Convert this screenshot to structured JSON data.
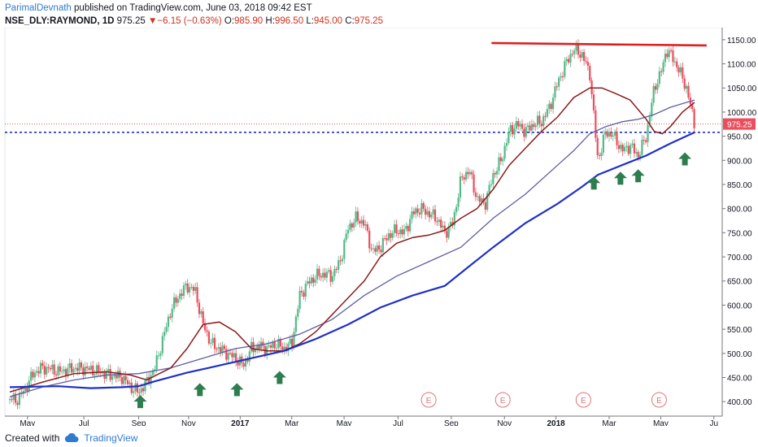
{
  "header": {
    "author": "ParimalDevnath",
    "published": "published on TradingView.com, June 03, 2018 09:42 EST"
  },
  "ticker": {
    "symbol": "NSE_DLY:RAYMOND, 1D",
    "last": "975.25",
    "change": "−6.15 (−0.63%)",
    "o_label": "O:",
    "o": "985.90",
    "h_label": "H:",
    "h": "996.50",
    "l_label": "L:",
    "l": "945.00",
    "c_label": "C:",
    "c": "975.25"
  },
  "footer": {
    "created_with": "Created with",
    "brand": "TradingView"
  },
  "colors": {
    "up": "#53b987",
    "down": "#eb4d5c",
    "ma_short": "#8c1a1a",
    "ma_mid": "#5b5ea6",
    "ma_long": "#1f30c8",
    "resistance": "#e01e1e",
    "support": "#1f30c8",
    "arrow": "#2e7d4f"
  },
  "chart_data": {
    "type": "candlestick",
    "y_axis_ticks": [
      "400.00",
      "450.00",
      "500.00",
      "550.00",
      "600.00",
      "650.00",
      "700.00",
      "750.00",
      "800.00",
      "850.00",
      "900.00",
      "950.00",
      "1000.00",
      "1050.00",
      "1100.00",
      "1150.00"
    ],
    "ylim": [
      370,
      1175
    ],
    "x_tick_labels": [
      "May",
      "Jul",
      "Sep",
      "Nov",
      "2017",
      "Mar",
      "May",
      "Jul",
      "Sep",
      "Nov",
      "2018",
      "Mar",
      "May",
      "Ju"
    ],
    "last_price_label": "975.25",
    "resistance_level": 1138,
    "support_level": 958,
    "earnings_markers": [
      "E",
      "E",
      "E",
      "E"
    ],
    "close_series": [
      [
        0,
        405
      ],
      [
        10,
        404
      ],
      [
        20,
        430
      ],
      [
        30,
        460
      ],
      [
        40,
        470
      ],
      [
        50,
        468
      ],
      [
        60,
        462
      ],
      [
        70,
        465
      ],
      [
        80,
        470
      ],
      [
        95,
        468
      ],
      [
        110,
        462
      ],
      [
        125,
        455
      ],
      [
        140,
        450
      ],
      [
        150,
        430
      ],
      [
        160,
        420
      ],
      [
        170,
        440
      ],
      [
        180,
        470
      ],
      [
        190,
        530
      ],
      [
        200,
        590
      ],
      [
        210,
        620
      ],
      [
        220,
        640
      ],
      [
        230,
        630
      ],
      [
        240,
        560
      ],
      [
        250,
        520
      ],
      [
        260,
        510
      ],
      [
        270,
        500
      ],
      [
        280,
        490
      ],
      [
        290,
        475
      ],
      [
        300,
        510
      ],
      [
        310,
        515
      ],
      [
        320,
        510
      ],
      [
        330,
        520
      ],
      [
        340,
        510
      ],
      [
        350,
        520
      ],
      [
        360,
        620
      ],
      [
        370,
        645
      ],
      [
        380,
        660
      ],
      [
        390,
        665
      ],
      [
        400,
        660
      ],
      [
        410,
        690
      ],
      [
        420,
        760
      ],
      [
        430,
        780
      ],
      [
        440,
        770
      ],
      [
        450,
        710
      ],
      [
        460,
        720
      ],
      [
        470,
        745
      ],
      [
        480,
        755
      ],
      [
        490,
        750
      ],
      [
        500,
        790
      ],
      [
        510,
        800
      ],
      [
        520,
        790
      ],
      [
        530,
        780
      ],
      [
        540,
        750
      ],
      [
        550,
        770
      ],
      [
        560,
        860
      ],
      [
        570,
        880
      ],
      [
        580,
        820
      ],
      [
        590,
        810
      ],
      [
        600,
        870
      ],
      [
        610,
        900
      ],
      [
        620,
        960
      ],
      [
        630,
        975
      ],
      [
        640,
        960
      ],
      [
        650,
        975
      ],
      [
        660,
        980
      ],
      [
        670,
        1010
      ],
      [
        680,
        1060
      ],
      [
        690,
        1100
      ],
      [
        700,
        1130
      ],
      [
        710,
        1120
      ],
      [
        720,
        1080
      ],
      [
        730,
        900
      ],
      [
        740,
        960
      ],
      [
        750,
        950
      ],
      [
        760,
        920
      ],
      [
        770,
        930
      ],
      [
        780,
        910
      ],
      [
        790,
        950
      ],
      [
        800,
        1050
      ],
      [
        810,
        1090
      ],
      [
        815,
        1130
      ],
      [
        820,
        1120
      ],
      [
        830,
        1090
      ],
      [
        840,
        1050
      ],
      [
        850,
        975
      ]
    ],
    "ma_short": [
      [
        0,
        420
      ],
      [
        40,
        440
      ],
      [
        80,
        458
      ],
      [
        120,
        462
      ],
      [
        150,
        455
      ],
      [
        170,
        445
      ],
      [
        200,
        470
      ],
      [
        220,
        510
      ],
      [
        240,
        560
      ],
      [
        260,
        565
      ],
      [
        280,
        545
      ],
      [
        300,
        510
      ],
      [
        320,
        505
      ],
      [
        340,
        505
      ],
      [
        360,
        520
      ],
      [
        380,
        545
      ],
      [
        400,
        580
      ],
      [
        420,
        615
      ],
      [
        440,
        650
      ],
      [
        460,
        700
      ],
      [
        480,
        728
      ],
      [
        500,
        740
      ],
      [
        520,
        745
      ],
      [
        540,
        755
      ],
      [
        560,
        780
      ],
      [
        580,
        800
      ],
      [
        600,
        840
      ],
      [
        620,
        890
      ],
      [
        640,
        925
      ],
      [
        660,
        960
      ],
      [
        680,
        990
      ],
      [
        700,
        1030
      ],
      [
        720,
        1050
      ],
      [
        735,
        1050
      ],
      [
        750,
        1040
      ],
      [
        770,
        1025
      ],
      [
        790,
        985
      ],
      [
        800,
        960
      ],
      [
        810,
        955
      ],
      [
        820,
        970
      ],
      [
        835,
        1000
      ],
      [
        850,
        1020
      ]
    ],
    "ma_mid": [
      [
        0,
        410
      ],
      [
        40,
        430
      ],
      [
        80,
        445
      ],
      [
        120,
        455
      ],
      [
        160,
        458
      ],
      [
        200,
        470
      ],
      [
        240,
        490
      ],
      [
        280,
        510
      ],
      [
        320,
        520
      ],
      [
        360,
        540
      ],
      [
        400,
        570
      ],
      [
        440,
        620
      ],
      [
        480,
        660
      ],
      [
        520,
        690
      ],
      [
        560,
        720
      ],
      [
        600,
        780
      ],
      [
        640,
        830
      ],
      [
        680,
        890
      ],
      [
        700,
        920
      ],
      [
        720,
        955
      ],
      [
        740,
        970
      ],
      [
        760,
        980
      ],
      [
        780,
        985
      ],
      [
        800,
        995
      ],
      [
        820,
        1010
      ],
      [
        840,
        1020
      ],
      [
        850,
        1025
      ]
    ],
    "ma_long": [
      [
        0,
        430
      ],
      [
        60,
        432
      ],
      [
        100,
        428
      ],
      [
        140,
        430
      ],
      [
        160,
        432
      ],
      [
        180,
        442
      ],
      [
        220,
        460
      ],
      [
        260,
        475
      ],
      [
        300,
        490
      ],
      [
        340,
        505
      ],
      [
        380,
        530
      ],
      [
        420,
        560
      ],
      [
        460,
        595
      ],
      [
        500,
        620
      ],
      [
        540,
        640
      ],
      [
        570,
        680
      ],
      [
        600,
        720
      ],
      [
        640,
        770
      ],
      [
        680,
        810
      ],
      [
        710,
        845
      ],
      [
        730,
        870
      ],
      [
        760,
        890
      ],
      [
        790,
        910
      ],
      [
        820,
        935
      ],
      [
        850,
        958
      ]
    ]
  }
}
